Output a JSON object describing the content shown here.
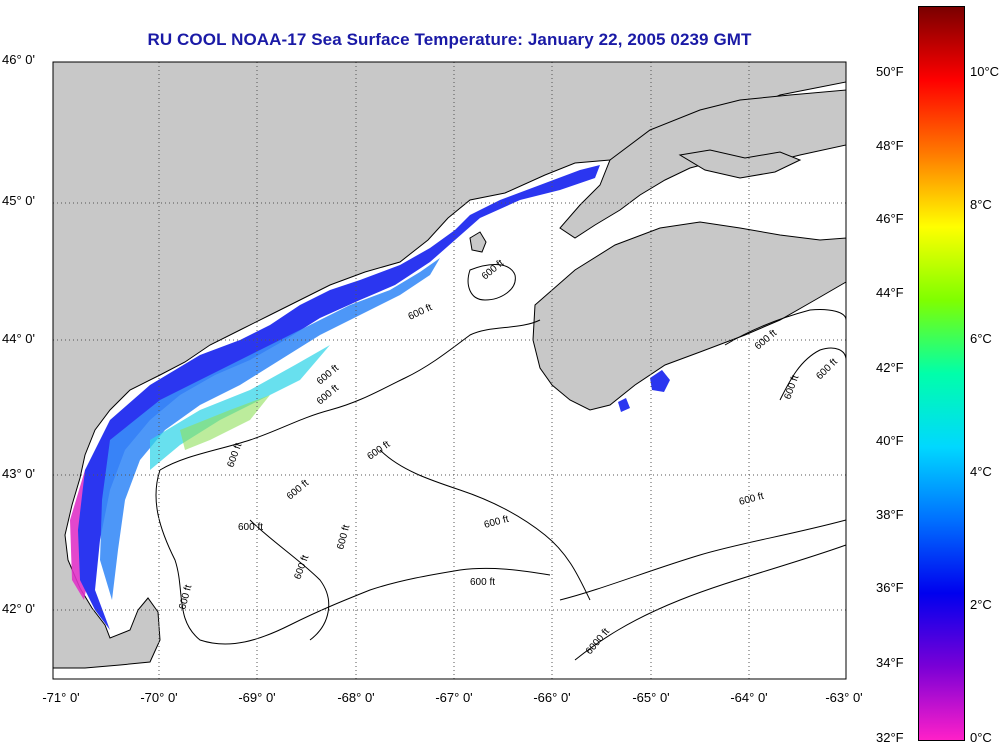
{
  "title": "RU COOL  NOAA-17  Sea Surface Temperature:  January 22, 2005 0239 GMT",
  "lat_labels": [
    "46° 0'",
    "45° 0'",
    "44° 0'",
    "43° 0'",
    "42° 0'"
  ],
  "lon_labels": [
    "-71° 0'",
    "-70° 0'",
    "-69° 0'",
    "-68° 0'",
    "-67° 0'",
    "-66° 0'",
    "-65° 0'",
    "-64° 0'",
    "-63° 0'"
  ],
  "contour_labels": [
    "600 ft",
    "600 ft",
    "600 ft",
    "600 ft",
    "600 ft",
    "600 ft",
    "600 ft",
    "600 ft",
    "600 ft",
    "600 ft",
    "600 ft",
    "600 ft",
    "600 ft",
    "6000 ft"
  ],
  "colorbar": {
    "fahrenheit": [
      "50°F",
      "48°F",
      "46°F",
      "44°F",
      "42°F",
      "40°F",
      "38°F",
      "36°F",
      "34°F",
      "32°F"
    ],
    "celsius": [
      "10°C",
      "8°C",
      "6°C",
      "4°C",
      "2°C",
      "0°C"
    ],
    "colors": [
      "#7a0000",
      "#ff0000",
      "#ff7a00",
      "#ffff00",
      "#7fff00",
      "#00ffaa",
      "#00d8ff",
      "#0070ff",
      "#0000ee",
      "#7a00d6",
      "#ff20c8"
    ]
  }
}
